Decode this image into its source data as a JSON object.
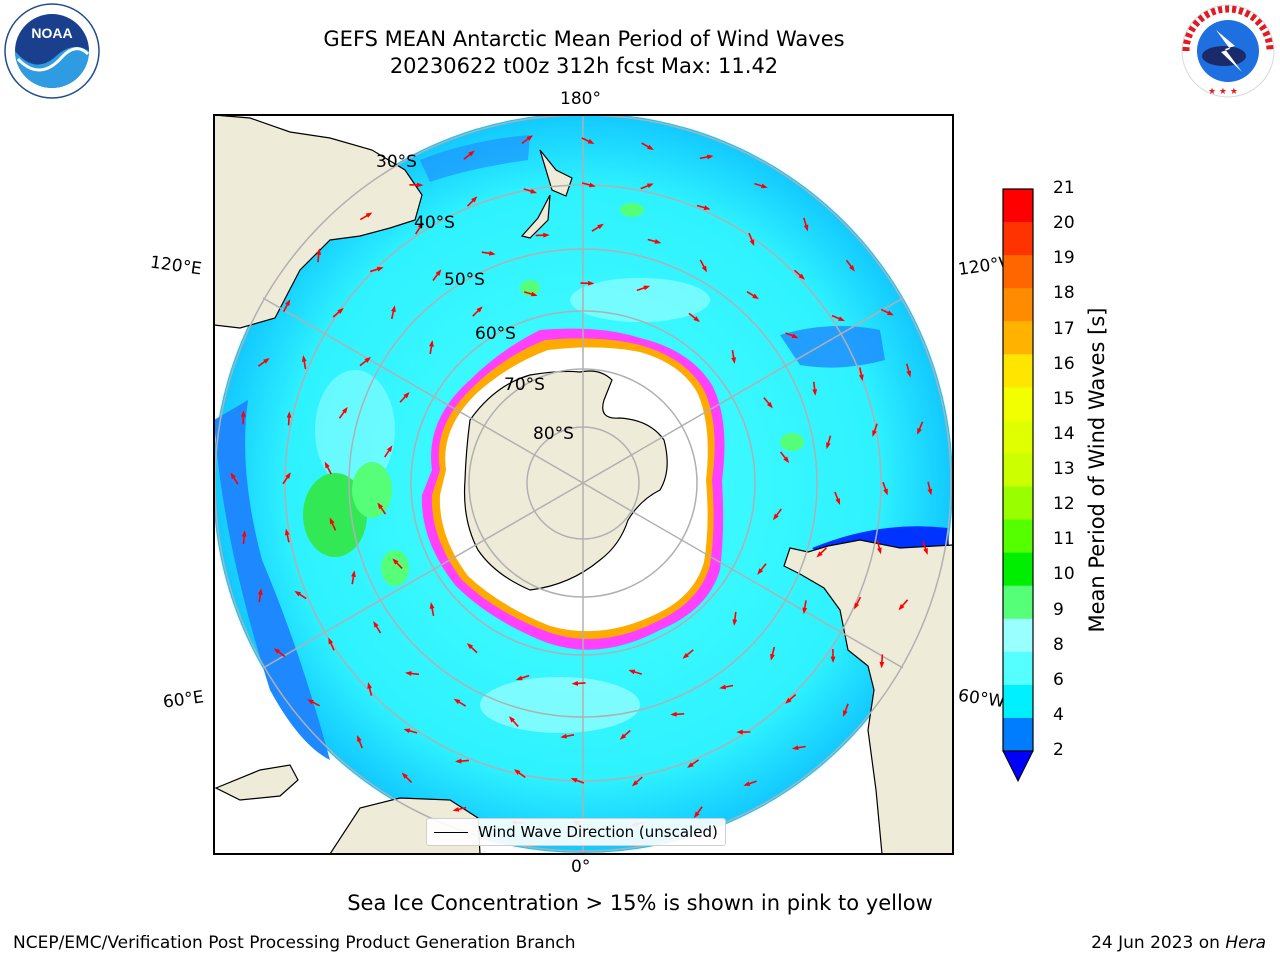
{
  "title": {
    "line1": "GEFS MEAN Antarctic Mean Period of Wind Waves",
    "line2": "20230622 t00z 312h fcst   Max: 11.42"
  },
  "logos": {
    "left": "NOAA",
    "left_ring": "NATIONAL OCEANIC AND ATMOSPHERIC ADMINISTRATION · U.S. DEPARTMENT OF COMMERCE",
    "right_ring": "NATIONAL WEATHER SERVICE"
  },
  "map": {
    "longitude_labels": {
      "top": "180°",
      "bottom": "0°",
      "left_upper": "120°E",
      "left_lower": "60°E",
      "right_upper": "120°W",
      "right_lower": "60°W"
    },
    "latitude_labels": [
      "30°S",
      "40°S",
      "50°S",
      "60°S",
      "70°S",
      "80°S"
    ],
    "legend": "Wind Wave Direction (unscaled)",
    "colors": {
      "land": "#eeecd9",
      "ice": "#ffffff",
      "ice_edge": [
        "#ff40ff",
        "#ffaa00"
      ],
      "arrow": "#ff0000",
      "grid": "#b0b0b0"
    }
  },
  "colorbar": {
    "label": "Mean Period of Wind Waves [s]",
    "ticks": [
      "21",
      "20",
      "19",
      "18",
      "17",
      "16",
      "15",
      "14",
      "13",
      "12",
      "11",
      "10",
      "9",
      "8",
      "6",
      "4",
      "2"
    ],
    "colors": [
      "#ff0000",
      "#ff3300",
      "#ff6600",
      "#ff8c00",
      "#ffb200",
      "#ffe600",
      "#f2ff00",
      "#e0ff00",
      "#ccff00",
      "#99ff00",
      "#55ff00",
      "#00ee00",
      "#55ff77",
      "#99ffff",
      "#55ffff",
      "#00f0ff",
      "#007dff"
    ],
    "extend_color": "#0000ff"
  },
  "caption": "Sea Ice Concentration > 15% is shown in pink to yellow",
  "footer": {
    "left": "NCEP/EMC/Verification Post Processing Product Generation Branch",
    "right_date": "24 Jun 2023 on",
    "right_machine": "Hera"
  }
}
